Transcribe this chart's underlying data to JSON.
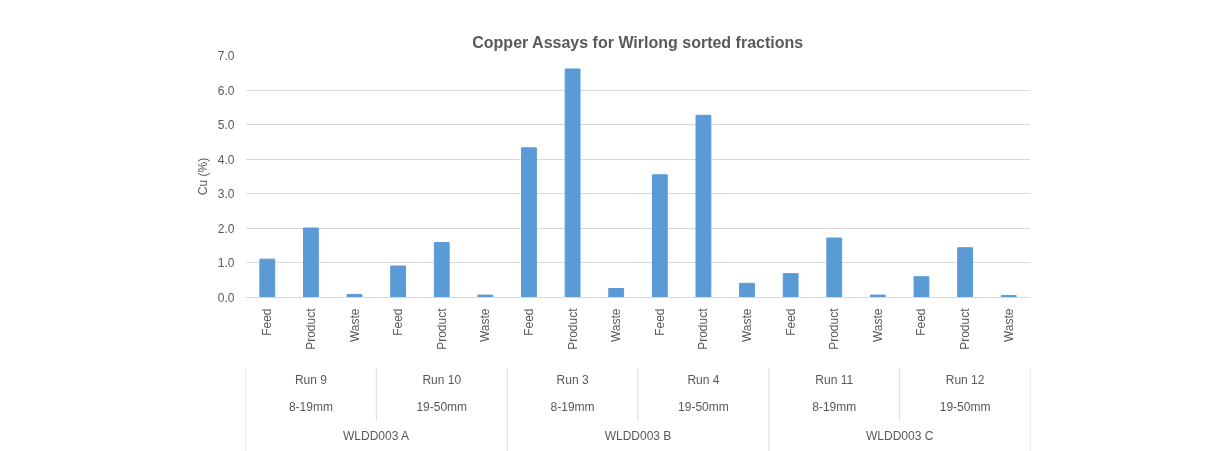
{
  "chart_data": {
    "type": "bar",
    "title": "Copper Assays for Wirlong sorted fractions",
    "ylabel": "Cu (%)",
    "categories": [
      "Feed",
      "Product",
      "Waste",
      "Feed",
      "Product",
      "Waste",
      "Feed",
      "Product",
      "Waste",
      "Feed",
      "Product",
      "Waste",
      "Feed",
      "Product",
      "Waste",
      "Feed",
      "Product",
      "Waste"
    ],
    "values": [
      1.11,
      2.01,
      0.09,
      0.91,
      1.59,
      0.07,
      4.33,
      6.61,
      0.26,
      3.55,
      5.27,
      0.41,
      0.69,
      1.72,
      0.07,
      0.6,
      1.44,
      0.06
    ],
    "annotations": [
      "Run 9",
      "Run 10",
      "Run 3",
      "Run 4",
      "Run 11",
      "Run 12",
      "8-19mm",
      "19-50mm",
      "8-19mm",
      "19-50mm",
      "8-19mm",
      "19-50mm",
      "WLDD003 A",
      "WLDD003 B",
      "WLDD003 C"
    ],
    "color": "#5b9bd5",
    "ylim": [
      0,
      7
    ],
    "yticks": [
      {
        "value": 0,
        "label": "0.0"
      },
      {
        "value": 1,
        "label": "1.0"
      },
      {
        "value": 2,
        "label": "2.0"
      },
      {
        "value": 3,
        "label": "3.0"
      },
      {
        "value": 4,
        "label": "4.0"
      },
      {
        "value": 5,
        "label": "5.0"
      },
      {
        "value": 6,
        "label": "6.0"
      },
      {
        "value": 7,
        "label": "7.0"
      }
    ],
    "grid": "y"
  }
}
